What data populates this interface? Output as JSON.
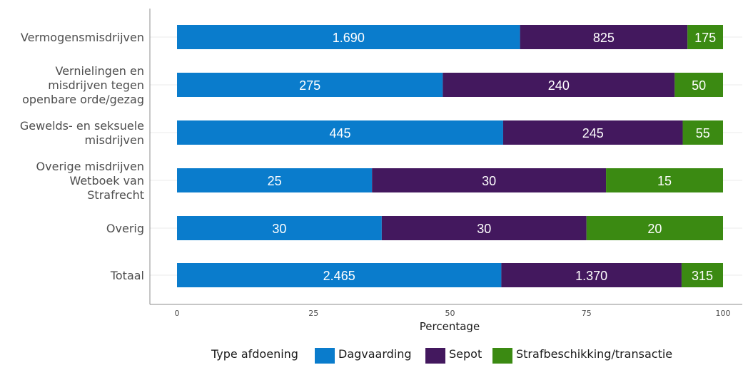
{
  "chart_data": {
    "type": "bar",
    "orientation": "horizontal",
    "stacked": true,
    "normalized": true,
    "categories": [
      [
        "Vermogensmisdrijven"
      ],
      [
        "Vernielingen en",
        "misdrijven tegen",
        "openbare orde/gezag"
      ],
      [
        "Gewelds- en seksuele",
        "misdrijven"
      ],
      [
        "Overige misdrijven",
        "Wetboek van",
        "Strafrecht"
      ],
      [
        "Overig"
      ],
      [
        "Totaal"
      ]
    ],
    "series": [
      {
        "name": "Dagvaarding",
        "color": "#0a7ccc",
        "values": [
          1690,
          275,
          445,
          25,
          30,
          2465
        ],
        "labels": [
          "1.690",
          "275",
          "445",
          "25",
          "30",
          "2.465"
        ]
      },
      {
        "name": "Sepot",
        "color": "#43185e",
        "values": [
          825,
          240,
          245,
          30,
          30,
          1370
        ],
        "labels": [
          "825",
          "240",
          "245",
          "30",
          "30",
          "1.370"
        ]
      },
      {
        "name": "Strafbeschikking/transactie",
        "color": "#3b8a12",
        "values": [
          175,
          50,
          55,
          15,
          20,
          315
        ],
        "labels": [
          "175",
          "50",
          "55",
          "15",
          "20",
          "315"
        ]
      }
    ],
    "xlabel": "Percentage",
    "ylabel": "",
    "xlim": [
      0,
      100
    ],
    "xticks": [
      0,
      25,
      50,
      75,
      100
    ],
    "grid": "horizontal",
    "legend": {
      "title": "Type afdoening",
      "position": "bottom"
    }
  }
}
